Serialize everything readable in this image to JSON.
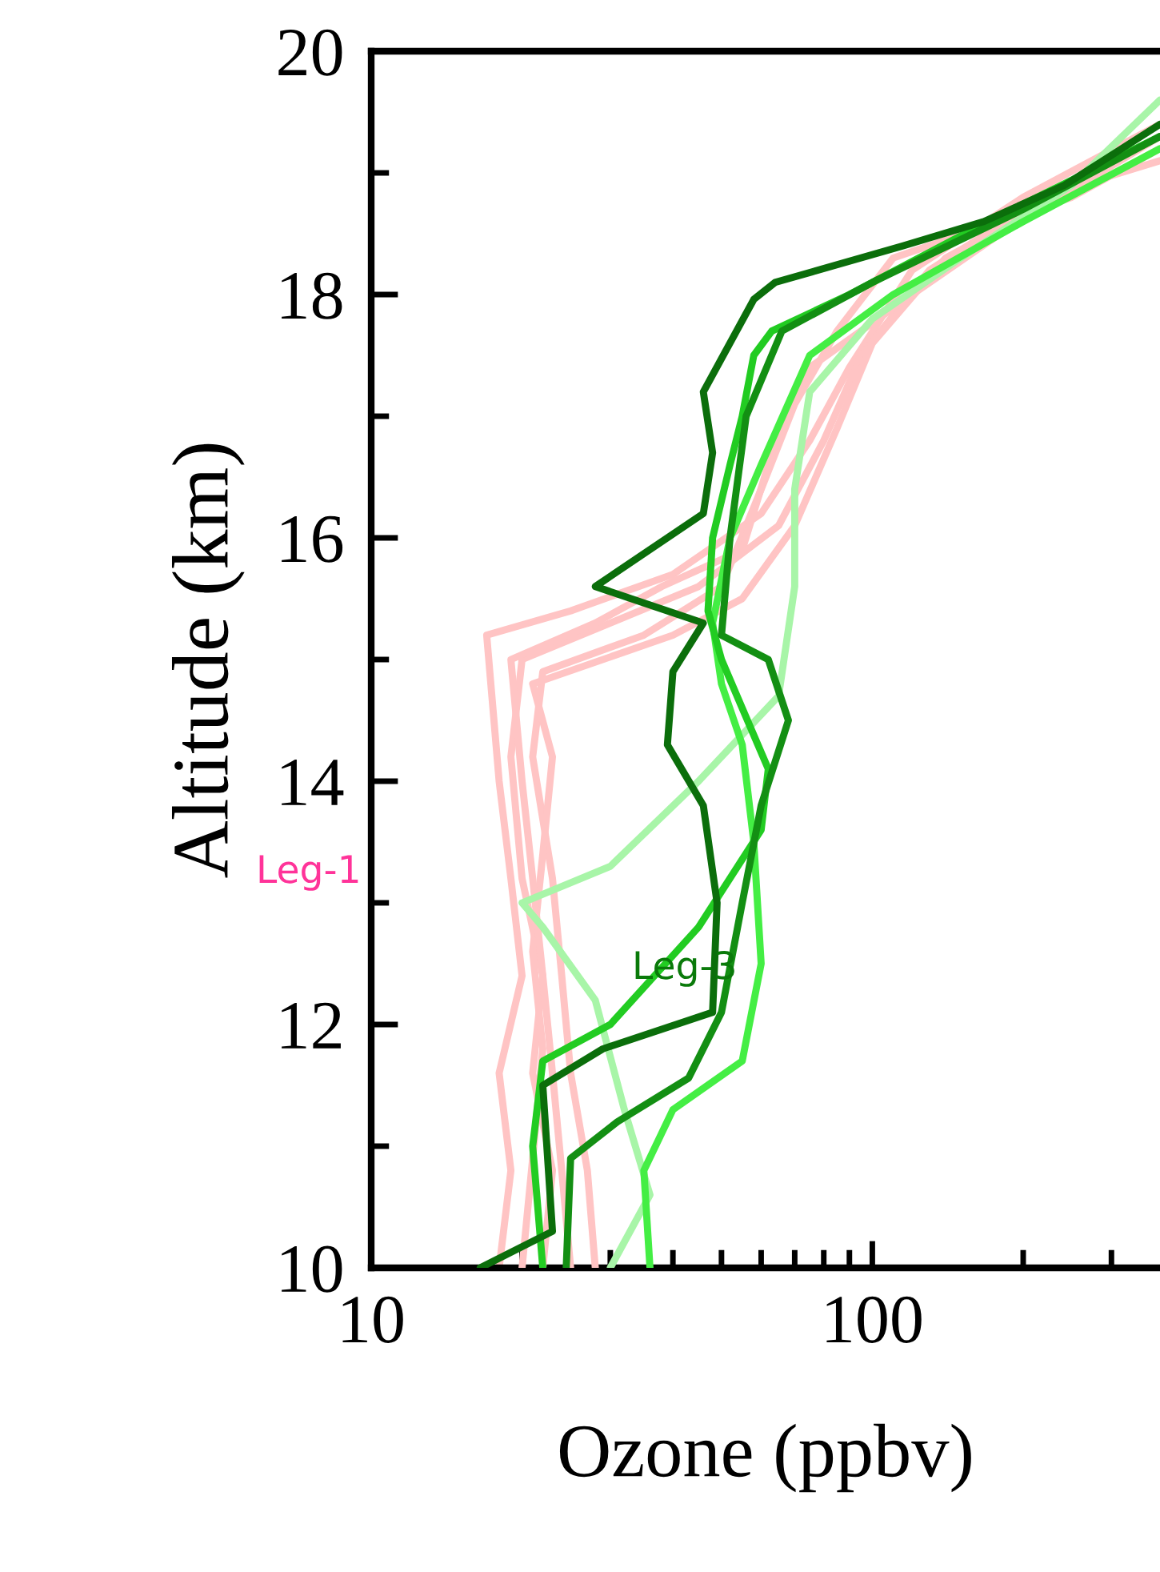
{
  "chart_data": {
    "type": "line",
    "xlabel": "Ozone (ppbv)",
    "ylabel": "Altitude (km)",
    "log": "x",
    "xlim": [
      10,
      375
    ],
    "ylim": [
      10,
      20
    ],
    "xticks": [
      10,
      {
        "value": 20,
        "label": null
      },
      {
        "value": 30,
        "label": null
      },
      {
        "value": 40,
        "label": null
      },
      {
        "value": 50,
        "label": null
      },
      {
        "value": 60,
        "label": null
      },
      {
        "value": 70,
        "label": null
      },
      {
        "value": 80,
        "label": null
      },
      {
        "value": 90,
        "label": null
      },
      100,
      {
        "value": 200,
        "label": null
      },
      {
        "value": 300,
        "label": null
      }
    ],
    "yticks": [
      10,
      {
        "value": 11,
        "label": null
      },
      12,
      {
        "value": 13,
        "label": null
      },
      14,
      {
        "value": 15,
        "label": null
      },
      16,
      {
        "value": 17,
        "label": null
      },
      18,
      {
        "value": 19,
        "label": null
      },
      20
    ],
    "grid": false,
    "legend": false,
    "line_style": "solid",
    "marker": "none",
    "annotations": [
      "Leg-1",
      "Leg-3"
    ],
    "series": [
      {
        "color": "#ffc4c4",
        "x": [
          18,
          19,
          18,
          20,
          19,
          18,
          17,
          25,
          40,
          60,
          75,
          90,
          120,
          200,
          375
        ],
        "values": [
          10,
          10.8,
          11.6,
          12.4,
          13.2,
          14,
          15.2,
          15.4,
          15.7,
          16.2,
          16.8,
          17.4,
          18.2,
          18.8,
          19.4
        ]
      },
      {
        "color": "#ffc4c4",
        "x": [
          22,
          23,
          21,
          22,
          20,
          19,
          20,
          30,
          45,
          65,
          80,
          95,
          130,
          220,
          375
        ],
        "values": [
          10,
          10.8,
          11.6,
          12.4,
          13.2,
          14.2,
          15.0,
          15.3,
          15.6,
          16.1,
          16.8,
          17.5,
          18.2,
          18.8,
          19.3
        ]
      },
      {
        "color": "#ffc4c4",
        "x": [
          28,
          27,
          25,
          24,
          23,
          21,
          22,
          35,
          50,
          60,
          70,
          85,
          110,
          250,
          375
        ],
        "values": [
          10,
          10.8,
          11.6,
          12.4,
          13.2,
          14.2,
          14.9,
          15.2,
          15.6,
          16.4,
          17.1,
          17.7,
          18.3,
          18.8,
          19.2
        ]
      },
      {
        "color": "#ffc4c4",
        "x": [
          20,
          21,
          22,
          21,
          22,
          23,
          21,
          40,
          55,
          70,
          85,
          100,
          140,
          260,
          375
        ],
        "values": [
          10,
          10.9,
          11.8,
          12.6,
          13.4,
          14.2,
          14.8,
          15.2,
          15.5,
          16.1,
          16.9,
          17.6,
          18.3,
          18.9,
          19.1
        ]
      },
      {
        "color": "#ffc4c4",
        "x": [
          25,
          24,
          23,
          22,
          21,
          20,
          19,
          28,
          38,
          55,
          62,
          75,
          120,
          180,
          375
        ],
        "values": [
          10,
          10.8,
          11.6,
          12.4,
          13.2,
          14.0,
          15.0,
          15.3,
          15.6,
          15.9,
          16.6,
          17.4,
          18.0,
          18.5,
          19.3
        ]
      },
      {
        "color": "#a8f5a8",
        "x": [
          30,
          36,
          32,
          28,
          22,
          20,
          30,
          45,
          65,
          70,
          70,
          75,
          100,
          150,
          250,
          375
        ],
        "values": [
          10,
          10.6,
          11.3,
          12.2,
          12.8,
          13.0,
          13.3,
          14,
          14.7,
          15.6,
          16.4,
          17.2,
          17.8,
          18.3,
          18.9,
          19.6
        ]
      },
      {
        "color": "#44ee44",
        "x": [
          36,
          35,
          40,
          55,
          60,
          58,
          55,
          50,
          48,
          52,
          60,
          75,
          110,
          200,
          375
        ],
        "values": [
          10,
          10.8,
          11.3,
          11.7,
          12.5,
          13.5,
          14.3,
          14.8,
          15.3,
          16,
          16.6,
          17.5,
          18.0,
          18.6,
          19.2
        ]
      },
      {
        "color": "#22cc22",
        "x": [
          22,
          21,
          22,
          30,
          45,
          60,
          62,
          55,
          50,
          47,
          48,
          52,
          55,
          58,
          63,
          90,
          170,
          375
        ],
        "values": [
          10,
          11,
          11.7,
          12.0,
          12.8,
          13.6,
          14.1,
          14.6,
          15.0,
          15.4,
          16,
          16.6,
          17.0,
          17.5,
          17.7,
          18.0,
          18.6,
          19.3
        ]
      },
      {
        "color": "#138f13",
        "x": [
          24.5,
          25,
          31,
          43,
          50,
          55,
          60,
          68,
          62,
          50,
          52,
          56,
          66,
          100,
          200,
          375
        ],
        "values": [
          10,
          10.9,
          11.2,
          11.56,
          12.1,
          13,
          13.8,
          14.5,
          15.0,
          15.2,
          16,
          17,
          17.7,
          18.1,
          18.7,
          19.3
        ]
      },
      {
        "color": "#0b6e0b",
        "x": [
          16.5,
          23,
          22,
          29,
          48,
          49,
          46,
          39,
          40,
          46,
          28,
          46,
          48,
          46,
          58,
          64,
          115,
          167,
          242,
          375
        ],
        "values": [
          10,
          10.3,
          11.5,
          11.8,
          12.1,
          13,
          13.8,
          14.3,
          14.9,
          15.3,
          15.6,
          16.2,
          16.7,
          17.2,
          17.96,
          18.1,
          18.4,
          18.6,
          18.9,
          19.4
        ]
      }
    ]
  }
}
